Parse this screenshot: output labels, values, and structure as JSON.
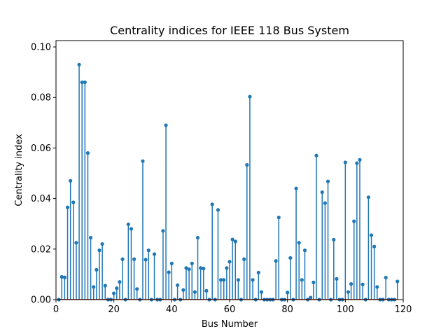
{
  "chart_data": {
    "type": "stem",
    "title": "Centrality indices for IEEE 118 Bus System",
    "xlabel": "Bus Number",
    "ylabel": "Centrality index",
    "xlim": [
      0,
      120
    ],
    "ylim": [
      0,
      0.1025
    ],
    "xticks": [
      0,
      20,
      40,
      60,
      80,
      100,
      120
    ],
    "xtick_labels": [
      "0",
      "20",
      "40",
      "60",
      "80",
      "100",
      "120"
    ],
    "yticks": [
      0,
      0.02,
      0.04,
      0.06,
      0.08,
      0.1
    ],
    "ytick_labels": [
      "0.00",
      "0.02",
      "0.04",
      "0.06",
      "0.08",
      "0.10"
    ],
    "grid": false,
    "colors": {
      "stem": "#1f77b4",
      "baseline": "#d62728"
    },
    "x": [
      1,
      2,
      3,
      4,
      5,
      6,
      7,
      8,
      9,
      10,
      11,
      12,
      13,
      14,
      15,
      16,
      17,
      18,
      19,
      20,
      21,
      22,
      23,
      24,
      25,
      26,
      27,
      28,
      29,
      30,
      31,
      32,
      33,
      34,
      35,
      36,
      37,
      38,
      39,
      40,
      41,
      42,
      43,
      44,
      45,
      46,
      47,
      48,
      49,
      50,
      51,
      52,
      53,
      54,
      55,
      56,
      57,
      58,
      59,
      60,
      61,
      62,
      63,
      64,
      65,
      66,
      67,
      68,
      69,
      70,
      71,
      72,
      73,
      74,
      75,
      76,
      77,
      78,
      79,
      80,
      81,
      82,
      83,
      84,
      85,
      86,
      87,
      88,
      89,
      90,
      91,
      92,
      93,
      94,
      95,
      96,
      97,
      98,
      99,
      100,
      101,
      102,
      103,
      104,
      105,
      106,
      107,
      108,
      109,
      110,
      111,
      112,
      113,
      114,
      115,
      116,
      117,
      118
    ],
    "y": [
      0,
      0.009,
      0.0088,
      0.0365,
      0.047,
      0.0385,
      0.0225,
      0.093,
      0.086,
      0.086,
      0.058,
      0.0245,
      0.005,
      0.0118,
      0.0195,
      0.022,
      0.0055,
      0,
      0,
      0.0025,
      0.0045,
      0.007,
      0.016,
      0,
      0.0298,
      0.028,
      0.016,
      0.0042,
      0,
      0.0548,
      0.0158,
      0.0195,
      0,
      0.018,
      0,
      0,
      0.0272,
      0.069,
      0.0108,
      0.0143,
      0,
      0.0057,
      0,
      0.0038,
      0.0125,
      0.012,
      0.0143,
      0.003,
      0.0245,
      0.0125,
      0.0123,
      0.0035,
      0,
      0.0377,
      0,
      0.0355,
      0.0078,
      0.0078,
      0.0125,
      0.015,
      0.0238,
      0.023,
      0.0078,
      0,
      0.016,
      0.0533,
      0.0803,
      0.0078,
      0,
      0.0107,
      0.003,
      0,
      0,
      0,
      0,
      0.0153,
      0.0325,
      0,
      0,
      0.0028,
      0.0165,
      0,
      0.044,
      0.0225,
      0.0078,
      0.0195,
      0,
      0.0008,
      0.0068,
      0.057,
      0,
      0.0425,
      0.0382,
      0.0468,
      0,
      0.0237,
      0.0082,
      0,
      0,
      0.0543,
      0.003,
      0.0062,
      0.031,
      0.054,
      0.0553,
      0.006,
      0,
      0.0405,
      0.0255,
      0.021,
      0.005,
      0,
      0,
      0.0087,
      0,
      0,
      0,
      0.0072
    ]
  }
}
